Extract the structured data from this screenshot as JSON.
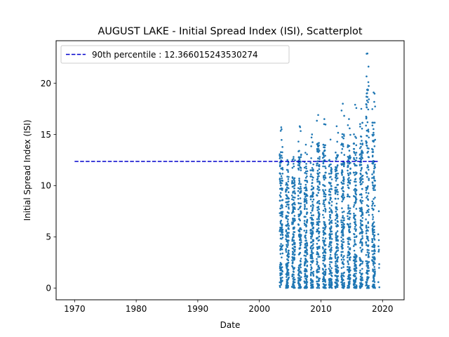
{
  "chart_data": {
    "type": "scatter",
    "title": "AUGUST LAKE - Initial Spread Index (ISI), Scatterplot",
    "xlabel": "Date",
    "ylabel": "Initial Spread Index (ISI)",
    "xlim": [
      1967,
      2023.5
    ],
    "ylim": [
      -1.15,
      24.15
    ],
    "x_ticks": [
      1970,
      1980,
      1990,
      2000,
      2010,
      2020
    ],
    "y_ticks": [
      0,
      5,
      10,
      15,
      20
    ],
    "grid": false,
    "legend": {
      "placement": "top-left",
      "entries": [
        {
          "label": "90th percentile : 12.366015243530274",
          "color": "#0000cc",
          "style": "dashed"
        }
      ]
    },
    "percentile_line": {
      "y": 12.366015243530274,
      "x_start": 1970,
      "x_end": 2019.5,
      "color": "#0000cc"
    },
    "series": [
      {
        "color": "#1f77b4",
        "season_range": [
          2003.3,
          2019.5
        ],
        "year_maxima": [
          {
            "year": 2003,
            "max": 15.7
          },
          {
            "year": 2004,
            "max": 12.5
          },
          {
            "year": 2005,
            "max": 12.8
          },
          {
            "year": 2006,
            "max": 15.8
          },
          {
            "year": 2007,
            "max": 14.0
          },
          {
            "year": 2008,
            "max": 15.0
          },
          {
            "year": 2009,
            "max": 16.9
          },
          {
            "year": 2010,
            "max": 16.5
          },
          {
            "year": 2011,
            "max": 14.5
          },
          {
            "year": 2012,
            "max": 15.8
          },
          {
            "year": 2013,
            "max": 18.0
          },
          {
            "year": 2014,
            "max": 16.5
          },
          {
            "year": 2015,
            "max": 17.9
          },
          {
            "year": 2016,
            "max": 17.5
          },
          {
            "year": 2017,
            "max": 22.9
          },
          {
            "year": 2018,
            "max": 19.1
          },
          {
            "year": 2019,
            "max": 7.5
          }
        ]
      }
    ]
  }
}
